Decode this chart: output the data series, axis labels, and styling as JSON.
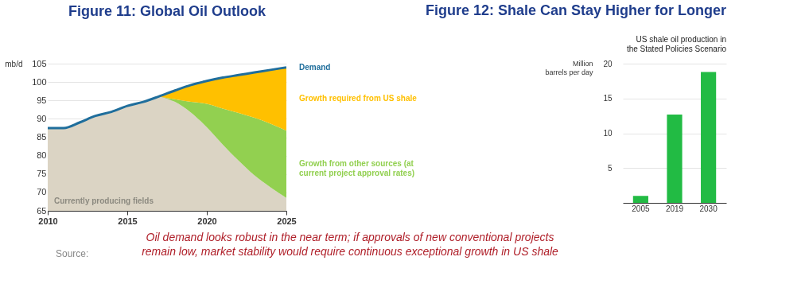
{
  "chart_data": [
    {
      "type": "area",
      "title": "Figure 11: Global Oil Outlook",
      "ylabel": "mb/d",
      "legend": false,
      "grid": "y",
      "x": [
        2010,
        2011,
        2012,
        2013,
        2014,
        2015,
        2016,
        2017,
        2018,
        2019,
        2020,
        2021,
        2022,
        2023,
        2024,
        2025
      ],
      "series": [
        {
          "name": "Currently producing fields",
          "color": "#dbd4c4",
          "values": [
            87.5,
            87.5,
            89.0,
            90.8,
            91.9,
            93.5,
            94.6,
            96.1,
            94.6,
            91.7,
            87.7,
            83.0,
            78.6,
            74.6,
            71.4,
            68.5
          ]
        },
        {
          "name": "Growth from other sources (at current project approval rates)",
          "color": "#92d050",
          "values": [
            null,
            null,
            null,
            null,
            null,
            null,
            null,
            96.1,
            95.3,
            94.6,
            94.1,
            92.8,
            91.6,
            90.3,
            88.7,
            86.8
          ]
        },
        {
          "name": "Growth required from US shale",
          "color": "#ffc000",
          "values": [
            null,
            null,
            null,
            null,
            null,
            null,
            null,
            96.1,
            97.7,
            99.2,
            100.3,
            101.2,
            101.9,
            102.6,
            103.3,
            104.0
          ]
        },
        {
          "name": "Demand",
          "type": "line",
          "color": "#1f6e9c",
          "values": [
            87.5,
            87.5,
            89.0,
            90.8,
            91.9,
            93.5,
            94.6,
            96.1,
            97.7,
            99.2,
            100.3,
            101.2,
            101.9,
            102.6,
            103.3,
            104.0
          ]
        }
      ],
      "xlim": [
        2010,
        2025
      ],
      "xticks": [
        2010,
        2015,
        2020,
        2025
      ],
      "ylim": [
        65,
        105
      ],
      "yticks": [
        65,
        70,
        75,
        80,
        85,
        90,
        95,
        100,
        105
      ],
      "annotations": [
        "Oil demand looks robust in the near term; if approvals of new conventional projects remain low, market stability would require continuous exceptional growth in US shale",
        "Source:"
      ]
    },
    {
      "type": "bar",
      "title": "Figure 12: Shale Can Stay Higher for Longer",
      "subtitle": "US shale oil production in the Stated Policies Scenario",
      "ylabel": "Million barrels per day",
      "grid": "y",
      "categories": [
        "2005",
        "2019",
        "2030"
      ],
      "values": [
        1.0,
        12.7,
        18.8
      ],
      "color": "#22bb44",
      "ylim": [
        0,
        20
      ],
      "yticks": [
        5,
        10,
        15,
        20
      ]
    }
  ]
}
